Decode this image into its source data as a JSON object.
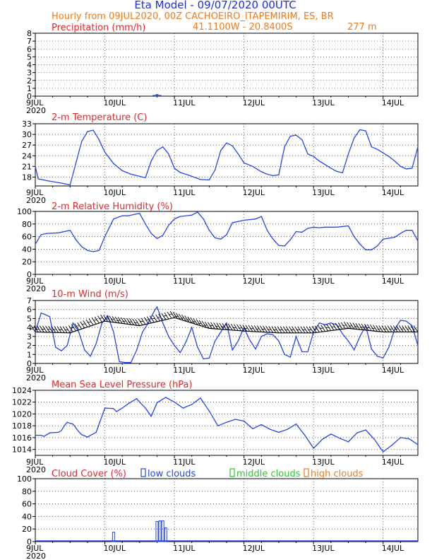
{
  "header": {
    "title": "Eta Model - 09/07/2020 00UTC",
    "subtitle": "Hourly from 09JUL2020, 00Z  CACHOEIRO_ITAPEMIRIM, ES, BR",
    "location": "41.1100W - 20.8400S",
    "elevation": "277   m"
  },
  "x_axis": {
    "labels": [
      "9JUL",
      "10JUL",
      "11JUL",
      "12JUL",
      "13JUL",
      "14JUL"
    ],
    "year": "2020",
    "hours": [
      0,
      24,
      48,
      72,
      96,
      120
    ],
    "range_hours": [
      0,
      132
    ]
  },
  "colors": {
    "line": "#2244ee",
    "title": "#e8262a",
    "header": "#1a2ee6",
    "subheader": "#f07a1c",
    "low": "#2244ee",
    "mid": "#22cc22",
    "high": "#f07a1c"
  },
  "chart_data": [
    {
      "type": "bar",
      "title": "Precipitation (mm/h)",
      "ylim": [
        0,
        8
      ],
      "yticks": [
        "0",
        "1",
        "2",
        "3",
        "4",
        "5",
        "6",
        "7",
        "8"
      ],
      "x_hours": [
        41,
        42,
        43
      ],
      "values": [
        0.15,
        0.25,
        0.15
      ]
    },
    {
      "type": "line",
      "title": "2-m Temperature (C)",
      "ylim": [
        15.5,
        33
      ],
      "yticks": [
        "18",
        "21",
        "24",
        "27",
        "30",
        "33"
      ],
      "x_hours": [
        0,
        1,
        4,
        9,
        12,
        16,
        18,
        20,
        22,
        24,
        27,
        30,
        33,
        36,
        38,
        40,
        42,
        44,
        46,
        48,
        50,
        53,
        57,
        60,
        62,
        64,
        66,
        68,
        70,
        72,
        75,
        78,
        80,
        82,
        84,
        86,
        88,
        90,
        92,
        94,
        96,
        98,
        100,
        102,
        104,
        106,
        108,
        110,
        112,
        114,
        116,
        118,
        120,
        122,
        124,
        126,
        128,
        130,
        132
      ],
      "values": [
        21,
        17.5,
        17.0,
        16.3,
        15.8,
        28,
        30.8,
        31.2,
        28.5,
        25,
        21.8,
        19.8,
        18.8,
        18.2,
        17.8,
        22.5,
        25.5,
        26.5,
        24.5,
        20.5,
        19.3,
        18.5,
        17.3,
        17.2,
        20,
        25.5,
        27.6,
        26.8,
        24.5,
        22,
        21,
        19.5,
        18.8,
        18.4,
        18.6,
        26.5,
        29.5,
        29.8,
        28.5,
        24.5,
        23.8,
        22.5,
        21.5,
        20.5,
        19.6,
        19.2,
        24.5,
        29,
        31.3,
        31.0,
        26.5,
        25.8,
        24.8,
        23.8,
        22.5,
        21,
        20.3,
        20.5,
        26.5
      ],
      "legend": []
    },
    {
      "type": "line",
      "title": "2-m Relative Humidity (%)",
      "ylim": [
        0,
        100
      ],
      "yticks": [
        "0",
        "20",
        "40",
        "60",
        "80",
        "100"
      ],
      "x_hours": [
        0,
        2,
        4,
        8,
        12,
        14,
        16,
        18,
        20,
        22,
        24,
        27,
        30,
        32,
        34,
        36,
        38,
        40,
        42,
        44,
        46,
        48,
        50,
        54,
        56,
        58,
        60,
        62,
        64,
        66,
        68,
        70,
        72,
        76,
        78,
        80,
        82,
        84,
        86,
        88,
        90,
        92,
        94,
        96,
        98,
        100,
        104,
        108,
        110,
        112,
        114,
        116,
        118,
        120,
        124,
        126,
        128,
        130,
        132
      ],
      "values": [
        48,
        63,
        65,
        66,
        70,
        55,
        44,
        38,
        36,
        38,
        60,
        88,
        93,
        93,
        95,
        97,
        80,
        65,
        57,
        62,
        78,
        88,
        92,
        94,
        99,
        88,
        70,
        58,
        56,
        63,
        82,
        84,
        86,
        88,
        92,
        70,
        56,
        46,
        45,
        55,
        68,
        67,
        73,
        75,
        74,
        75,
        75,
        77,
        60,
        48,
        39,
        39,
        45,
        56,
        59,
        65,
        70,
        70,
        53
      ],
      "legend": []
    },
    {
      "type": "line",
      "title": "10-m Wind (m/s)",
      "ylim": [
        0,
        7
      ],
      "yticks": [
        "0",
        "1",
        "2",
        "3",
        "4",
        "5",
        "6",
        "7"
      ],
      "x_hours": [
        0,
        2,
        3,
        5,
        7,
        9,
        11,
        13,
        15,
        17,
        19,
        21,
        23,
        25,
        27,
        29,
        31,
        33,
        35,
        37,
        39,
        41,
        42,
        44,
        46,
        48,
        50,
        52,
        54,
        56,
        58,
        60,
        62,
        64,
        66,
        68,
        70,
        72,
        74,
        76,
        78,
        80,
        82,
        84,
        86,
        88,
        90,
        92,
        94,
        96,
        98,
        100,
        102,
        104,
        106,
        108,
        110,
        112,
        114,
        116,
        118,
        120,
        122,
        124,
        126,
        128,
        130,
        132
      ],
      "values": [
        3.5,
        5.6,
        5.5,
        5.2,
        1.8,
        1.4,
        2.0,
        4.5,
        3.5,
        1.5,
        0.8,
        2.2,
        4.5,
        5.3,
        3.5,
        0.2,
        0.1,
        0.1,
        1.5,
        3.5,
        4.5,
        5.8,
        6.3,
        4.5,
        3.0,
        2.0,
        1.2,
        2.4,
        4.0,
        1.8,
        0.5,
        0.6,
        2.5,
        3.5,
        4.5,
        1.5,
        2.5,
        4.0,
        2.6,
        1.6,
        3.0,
        3.3,
        3.2,
        2.5,
        1.0,
        0.7,
        3.0,
        1.3,
        1.3,
        3.5,
        4.5,
        4.3,
        4.5,
        4.3,
        3.3,
        2.5,
        1.5,
        3.0,
        4.2,
        1.6,
        0.8,
        0.6,
        1.8,
        3.8,
        4.8,
        4.7,
        4.2,
        2.0
      ],
      "barb_x_hours": [
        0,
        12,
        24,
        36,
        48,
        60,
        72,
        84,
        96,
        108,
        120,
        132
      ],
      "barb_y": [
        3.5,
        3.4,
        4.7,
        4.2,
        5.1,
        3.9,
        3.6,
        3.4,
        3.4,
        3.9,
        3.5,
        3.5
      ],
      "legend": []
    },
    {
      "type": "line",
      "title": "Mean Sea Level Pressure (hPa)",
      "ylim": [
        1013,
        1024
      ],
      "yticks": [
        "1014",
        "1016",
        "1018",
        "1020",
        "1022",
        "1024"
      ],
      "x_hours": [
        0,
        2,
        3,
        4,
        5,
        8,
        9,
        10,
        11,
        12,
        13,
        15,
        16,
        17,
        18,
        21,
        24,
        27,
        28,
        30,
        32,
        35,
        36,
        38,
        40,
        42,
        45,
        48,
        51,
        54,
        57,
        60,
        63,
        66,
        69,
        72,
        75,
        78,
        81,
        84,
        87,
        90,
        93,
        96,
        99,
        102,
        105,
        108,
        111,
        114,
        117,
        120,
        123,
        126,
        129,
        132
      ],
      "values": [
        1016.4,
        1016.4,
        1016.2,
        1016.5,
        1016.8,
        1016.9,
        1017.2,
        1018,
        1018.6,
        1018.4,
        1018.3,
        1017,
        1016.5,
        1016.3,
        1016.1,
        1016.9,
        1021,
        1020.9,
        1020.4,
        1021,
        1021.7,
        1022.6,
        1022,
        1021,
        1019.6,
        1021.9,
        1022.8,
        1022,
        1021,
        1021.6,
        1022.7,
        1020.5,
        1018,
        1018.6,
        1019.1,
        1018.8,
        1017.5,
        1018.2,
        1017.4,
        1016.9,
        1017.4,
        1018.3,
        1016.4,
        1014.2,
        1015.7,
        1016.6,
        1015.9,
        1015.3,
        1016.8,
        1017.3,
        1015.7,
        1013.6,
        1014.7,
        1016,
        1015.8,
        1014.8
      ],
      "legend": []
    },
    {
      "type": "bar",
      "title": "Cloud Cover (%)",
      "ylim": [
        0,
        100
      ],
      "yticks": [
        "0",
        "20",
        "40",
        "60",
        "80",
        "100"
      ],
      "legend": [
        "low clouds",
        "middle clouds",
        "high clouds"
      ],
      "series": [
        {
          "name": "low clouds",
          "x_hours": [
            27,
            42,
            43,
            44,
            45
          ],
          "values": [
            15,
            32,
            33,
            33,
            22
          ]
        }
      ]
    }
  ]
}
